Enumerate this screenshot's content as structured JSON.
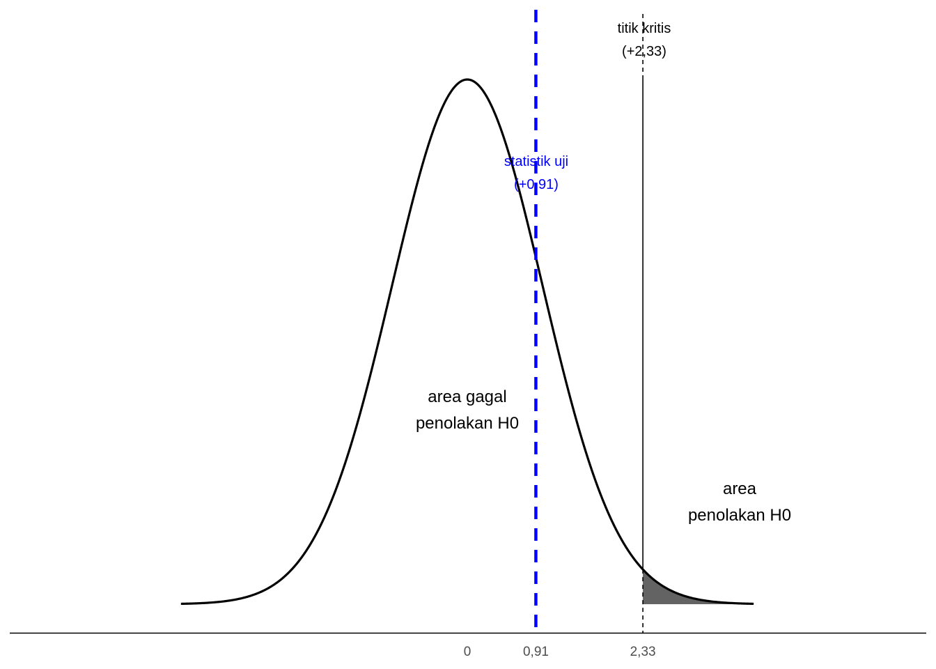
{
  "chart_data": {
    "type": "area",
    "distribution": "standard normal density, mean 0, sd 1",
    "xlim": [
      -3.8,
      3.8
    ],
    "x_ticks": [
      {
        "value": 0,
        "label": "0"
      },
      {
        "value": 0.91,
        "label": "0,91"
      },
      {
        "value": 2.33,
        "label": "2,33"
      }
    ],
    "shaded_region": {
      "from": 2.33,
      "to": 3.8,
      "color": "#636363"
    },
    "critical_value": {
      "value": 2.33,
      "label_line1": "titik kritis",
      "label_line2": "(+2,33)",
      "color": "#000000"
    },
    "test_statistic": {
      "value": 0.91,
      "label_line1": "statistik uji",
      "label_line2": "(+0,91)",
      "color": "#0000ff"
    },
    "regions": [
      {
        "label_line1": "area gagal",
        "label_line2": "penolakan H0",
        "x": 0
      },
      {
        "label_line1": "area",
        "label_line2": "penolakan H0",
        "x": 2.5
      }
    ],
    "curve_color": "#000000",
    "grid": false
  }
}
